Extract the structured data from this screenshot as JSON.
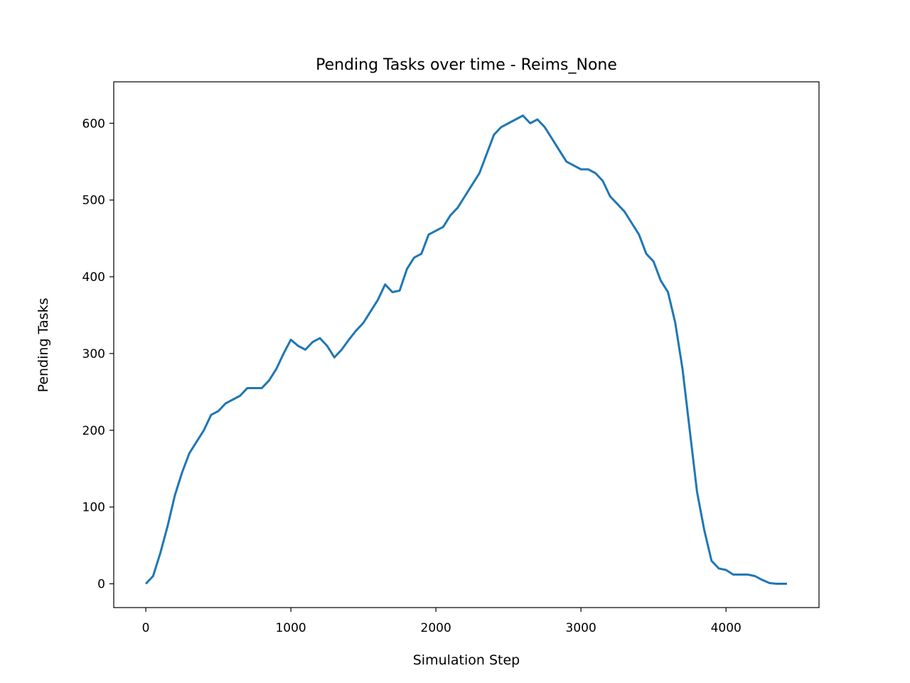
{
  "chart_data": {
    "type": "line",
    "title": "Pending Tasks over time - Reims_None",
    "x_label": "Simulation Step",
    "y_label": "Pending Tasks",
    "x": [
      0,
      50,
      100,
      150,
      200,
      250,
      300,
      350,
      400,
      450,
      500,
      550,
      600,
      650,
      700,
      750,
      800,
      850,
      900,
      950,
      1000,
      1050,
      1100,
      1150,
      1200,
      1250,
      1300,
      1350,
      1400,
      1450,
      1500,
      1550,
      1600,
      1650,
      1700,
      1750,
      1800,
      1850,
      1900,
      1950,
      2000,
      2050,
      2100,
      2150,
      2200,
      2250,
      2300,
      2350,
      2400,
      2450,
      2500,
      2550,
      2600,
      2650,
      2700,
      2750,
      2800,
      2850,
      2900,
      2950,
      3000,
      3050,
      3100,
      3150,
      3200,
      3250,
      3300,
      3350,
      3400,
      3450,
      3500,
      3550,
      3600,
      3650,
      3700,
      3750,
      3800,
      3850,
      3900,
      3950,
      4000,
      4050,
      4100,
      4150,
      4200,
      4250,
      4300,
      4350,
      4420
    ],
    "series": [
      {
        "name": "Pending Tasks",
        "color": "#1f77b4",
        "values": [
          0,
          10,
          40,
          75,
          115,
          145,
          170,
          185,
          200,
          220,
          225,
          235,
          240,
          245,
          255,
          255,
          255,
          265,
          280,
          300,
          318,
          310,
          305,
          315,
          320,
          310,
          295,
          305,
          318,
          330,
          340,
          355,
          370,
          390,
          380,
          382,
          410,
          425,
          430,
          455,
          460,
          465,
          480,
          490,
          505,
          520,
          535,
          560,
          585,
          595,
          600,
          605,
          610,
          600,
          605,
          595,
          580,
          565,
          550,
          545,
          540,
          540,
          535,
          525,
          505,
          495,
          485,
          470,
          455,
          430,
          420,
          395,
          380,
          340,
          280,
          200,
          120,
          70,
          30,
          20,
          18,
          12,
          12,
          12,
          10,
          5,
          1,
          0,
          0
        ]
      }
    ],
    "xlim": [
      -221,
      4641
    ],
    "ylim": [
      -31,
      654
    ],
    "xticks": [
      0,
      1000,
      2000,
      3000,
      4000
    ],
    "yticks": [
      0,
      100,
      200,
      300,
      400,
      500,
      600
    ]
  }
}
